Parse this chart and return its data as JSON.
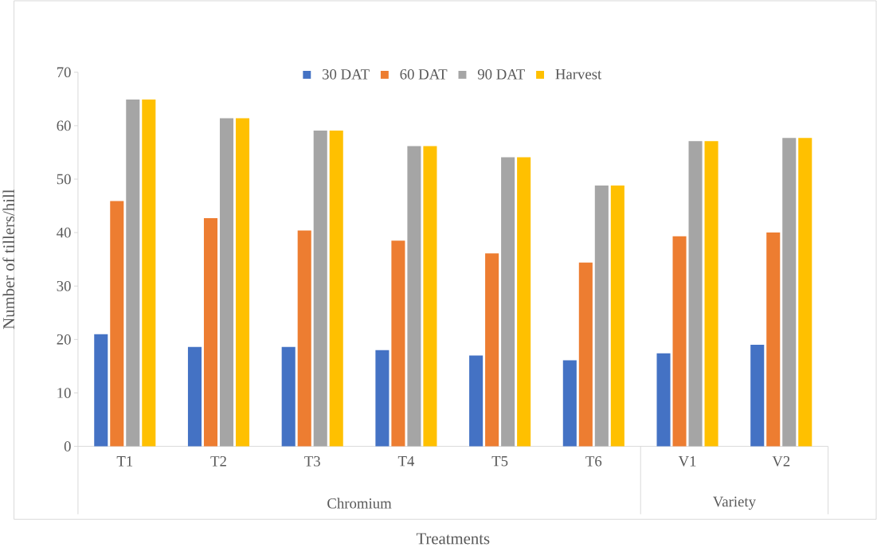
{
  "chart_data": {
    "type": "bar",
    "categories": [
      "T1",
      "T2",
      "T3",
      "T4",
      "T5",
      "T6",
      "V1",
      "V2"
    ],
    "series": [
      {
        "name": "30 DAT",
        "color": "#4472c4",
        "values": [
          21.0,
          18.6,
          18.6,
          18.0,
          17.0,
          16.1,
          17.4,
          19.0
        ]
      },
      {
        "name": "60 DAT",
        "color": "#ed7d31",
        "values": [
          45.9,
          42.7,
          40.4,
          38.5,
          36.1,
          34.4,
          39.3,
          40.0
        ]
      },
      {
        "name": "90 DAT",
        "color": "#a5a5a5",
        "values": [
          64.9,
          61.4,
          59.1,
          56.2,
          54.1,
          48.8,
          57.1,
          57.7
        ]
      },
      {
        "name": "Harvest",
        "color": "#ffc000",
        "values": [
          64.9,
          61.4,
          59.1,
          56.2,
          54.1,
          48.8,
          57.1,
          57.7
        ]
      }
    ],
    "ylim": [
      0,
      70
    ],
    "yticks": [
      0,
      10,
      20,
      30,
      40,
      50,
      60,
      70
    ],
    "ylabel": "Number of tillers/hill",
    "xlabel": "Treatments",
    "legend": "top",
    "annotations": [
      "Chromium",
      "Variety"
    ]
  }
}
